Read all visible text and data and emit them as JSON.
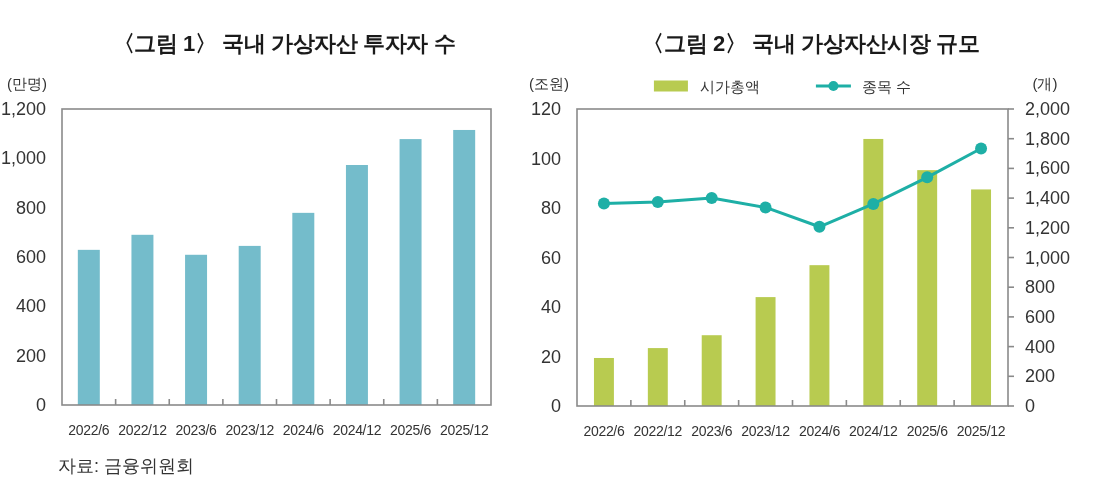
{
  "chart_data": [
    {
      "type": "bar",
      "title": "〈그림 1〉 국내 가상자산 투자자 수",
      "ylabel": "(만명)",
      "categories": [
        "2022/6",
        "2022/12",
        "2023/6",
        "2023/12",
        "2024/6",
        "2024/12",
        "2025/6",
        "2025/12"
      ],
      "values": [
        629,
        690,
        609,
        645,
        779,
        973,
        1078,
        1115
      ],
      "color": "#74bccb",
      "ylim": [
        0,
        1200
      ],
      "yticks": [
        0,
        200,
        400,
        600,
        800,
        {
          "value": 1000,
          "label": "1,000"
        },
        {
          "value": 1200,
          "label": "1,200"
        }
      ],
      "annotations": [
        "자료: 금융위원회"
      ]
    },
    {
      "type": "bar",
      "title": "〈그림 2〉 국내 가상자산시장 규모",
      "ylabel": "(조원)",
      "y2label": "(개)",
      "categories": [
        "2022/6",
        "2022/12",
        "2023/6",
        "2023/12",
        "2024/6",
        "2024/12",
        "2025/6",
        "2025/12"
      ],
      "series": [
        {
          "name": "시가총액",
          "type": "bar",
          "color": "#b8cb50",
          "values": [
            19.4,
            23.4,
            28.6,
            44.0,
            56.9,
            107.9,
            95.3,
            87.5
          ]
        },
        {
          "name": "종목 수",
          "type": "line",
          "axis": "y2",
          "color": "#1eafa6",
          "values": [
            1364,
            1374,
            1401,
            1337,
            1207,
            1361,
            1540,
            1734
          ]
        }
      ],
      "marker": "circle",
      "ylim": [
        0,
        120
      ],
      "yticks": [
        0,
        20,
        40,
        60,
        80,
        100,
        120
      ],
      "y2lim": [
        0,
        2000
      ],
      "y2ticks": [
        0,
        200,
        400,
        600,
        800,
        {
          "value": 1000,
          "label": "1,000"
        },
        {
          "value": 1200,
          "label": "1,200"
        },
        {
          "value": 1400,
          "label": "1,400"
        },
        {
          "value": 1600,
          "label": "1,600"
        },
        {
          "value": 1800,
          "label": "1,800"
        },
        {
          "value": 2000,
          "label": "2,000"
        }
      ],
      "legend": "top"
    }
  ]
}
